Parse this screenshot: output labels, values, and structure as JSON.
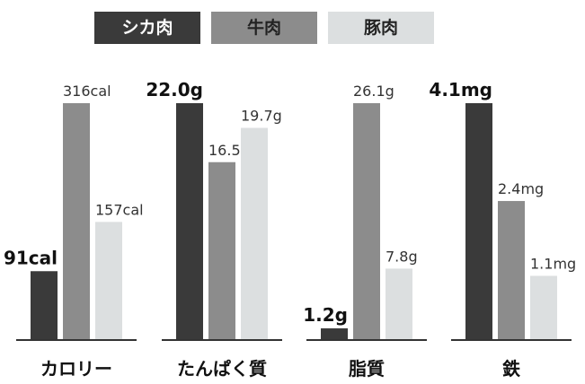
{
  "chart_data": {
    "type": "bar",
    "title": "",
    "xlabel": "",
    "ylabel": "",
    "grid": false,
    "legend_position": "top",
    "legend": [
      {
        "label": "シカ肉",
        "color": "#3a3a3a",
        "text_color": "#ffffff"
      },
      {
        "label": "牛肉",
        "color": "#8c8c8c",
        "text_color": "#222222"
      },
      {
        "label": "豚肉",
        "color": "#dcdfe0",
        "text_color": "#222222"
      }
    ],
    "groups": [
      {
        "category": "カロリー",
        "unit": "cal",
        "max": 316,
        "values": [
          91,
          316,
          157
        ],
        "labels": [
          "91cal",
          "316cal",
          "157cal"
        ],
        "highlight": [
          true,
          false,
          false
        ]
      },
      {
        "category": "たんぱく質",
        "unit": "g",
        "max": 22.0,
        "values": [
          22.0,
          16.5,
          19.7
        ],
        "labels": [
          "22.0g",
          "16.5g",
          "19.7g"
        ],
        "highlight": [
          true,
          false,
          false
        ]
      },
      {
        "category": "脂質",
        "unit": "g",
        "max": 26.1,
        "values": [
          1.2,
          26.1,
          7.8
        ],
        "labels": [
          "1.2g",
          "26.1g",
          "7.8g"
        ],
        "highlight": [
          true,
          false,
          false
        ]
      },
      {
        "category": "鉄",
        "unit": "mg",
        "max": 4.1,
        "values": [
          4.1,
          2.4,
          1.1
        ],
        "labels": [
          "4.1mg",
          "2.4mg",
          "1.1mg"
        ],
        "highlight": [
          true,
          false,
          false
        ]
      }
    ]
  }
}
